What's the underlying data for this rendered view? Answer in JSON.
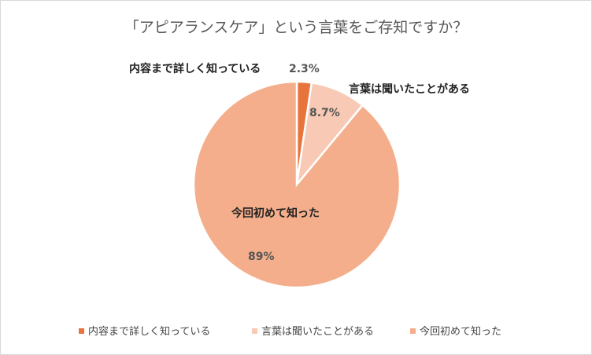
{
  "chart_data": {
    "type": "pie",
    "title": "「アピアランスケア」という言葉をご存知ですか？",
    "categories": [
      "内容まで詳しく知っている",
      "言葉は聞いたことがある",
      "今回初めて知った"
    ],
    "values": [
      2.3,
      8.7,
      89
    ],
    "value_labels": [
      "2.3%",
      "8.7%",
      "89%"
    ],
    "colors": [
      "#e8743b",
      "#f8c9b4",
      "#f4ae8b"
    ],
    "legend_position": "bottom",
    "start_angle": "12 o'clock",
    "direction": "clockwise"
  }
}
